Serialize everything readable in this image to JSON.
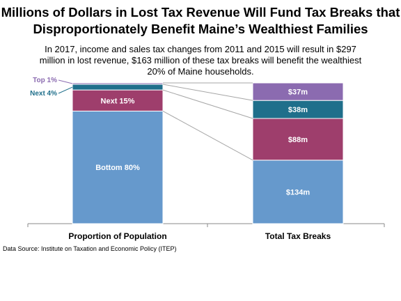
{
  "title_line1": "Millions of Dollars in Lost Tax Revenue Will Fund Tax Breaks that",
  "title_line2": "Disproportionately Benefit Maine’s Wealthiest Families",
  "subtitle_line1": "In 2017,  income and sales tax changes from 2011  and 2015  will result in $297",
  "subtitle_line2": "million in lost revenue, $163 million of these tax breaks will benefit the wealthiest",
  "subtitle_line3": "20% of Maine households.",
  "source": "Data Source: Institute on Taxation and Economic Policy (ITEP)",
  "chart_data": {
    "type": "bar",
    "stacked": true,
    "categories": [
      "Proportion of Population",
      "Total Tax Breaks"
    ],
    "series": [
      {
        "name": "Bottom 80%",
        "values": [
          80,
          134
        ],
        "labels": [
          "Bottom 80%",
          "$134m"
        ],
        "color": "#6699cc"
      },
      {
        "name": "Next 15%",
        "values": [
          15,
          88
        ],
        "labels": [
          "Next 15%",
          "$88m"
        ],
        "color": "#9e3e6c"
      },
      {
        "name": "Next 4%",
        "values": [
          4,
          38
        ],
        "labels": [
          "",
          "$38m"
        ],
        "color": "#1f6f8b"
      },
      {
        "name": "Top 1%",
        "values": [
          1,
          37
        ],
        "labels": [
          "",
          "$37m"
        ],
        "color": "#8b6bb0"
      }
    ],
    "totals": [
      100,
      297
    ],
    "side_labels": [
      {
        "series": "Top 1%",
        "text": "Top 1%",
        "color": "#8b6bb0"
      },
      {
        "series": "Next 4%",
        "text": "Next 4%",
        "color": "#1f6f8b"
      }
    ],
    "grid": false,
    "legend": "none"
  }
}
